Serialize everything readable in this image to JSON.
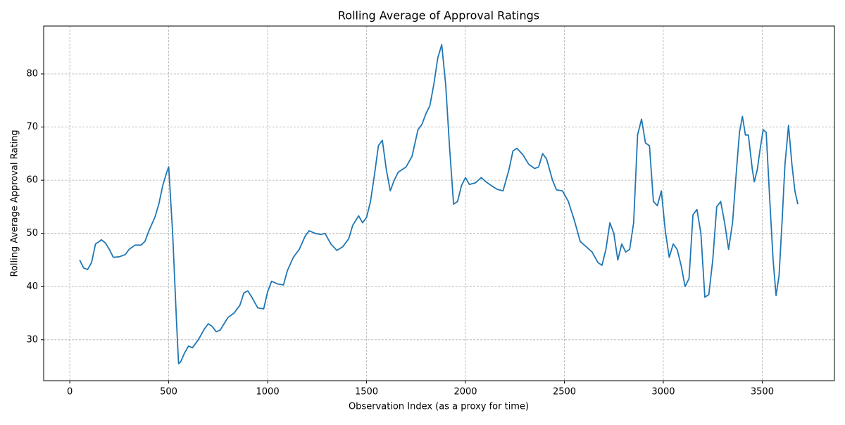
{
  "chart_data": {
    "type": "line",
    "title": "Rolling Average of Approval Ratings",
    "x_label": "Observation Index (as a proxy for time)",
    "y_label": "Rolling Average Approval Rating",
    "grid": true,
    "xlim": [
      -132,
      3865
    ],
    "ylim": [
      22.3,
      89.0
    ],
    "xticks": [
      0,
      500,
      1000,
      1500,
      2000,
      2500,
      3000,
      3500
    ],
    "yticks": [
      30,
      40,
      50,
      60,
      70,
      80
    ],
    "x": [
      50,
      70,
      90,
      110,
      130,
      150,
      160,
      180,
      200,
      220,
      250,
      280,
      300,
      330,
      360,
      380,
      400,
      430,
      450,
      470,
      490,
      500,
      520,
      540,
      550,
      560,
      580,
      600,
      620,
      650,
      680,
      700,
      720,
      740,
      760,
      780,
      800,
      830,
      860,
      880,
      900,
      920,
      950,
      980,
      1000,
      1020,
      1050,
      1080,
      1100,
      1130,
      1160,
      1190,
      1210,
      1240,
      1270,
      1290,
      1320,
      1350,
      1380,
      1410,
      1430,
      1460,
      1480,
      1500,
      1520,
      1540,
      1560,
      1580,
      1600,
      1620,
      1640,
      1660,
      1700,
      1730,
      1760,
      1780,
      1800,
      1820,
      1840,
      1860,
      1880,
      1900,
      1920,
      1940,
      1960,
      1980,
      2000,
      2020,
      2050,
      2080,
      2100,
      2130,
      2160,
      2190,
      2220,
      2240,
      2260,
      2290,
      2320,
      2350,
      2370,
      2390,
      2410,
      2440,
      2460,
      2490,
      2520,
      2550,
      2580,
      2610,
      2640,
      2670,
      2690,
      2710,
      2730,
      2750,
      2770,
      2790,
      2810,
      2830,
      2850,
      2870,
      2890,
      2910,
      2930,
      2950,
      2970,
      2990,
      3010,
      3030,
      3050,
      3070,
      3090,
      3110,
      3130,
      3150,
      3170,
      3190,
      3210,
      3230,
      3250,
      3270,
      3290,
      3310,
      3330,
      3350,
      3370,
      3385,
      3400,
      3415,
      3430,
      3450,
      3460,
      3475,
      3490,
      3505,
      3520,
      3540,
      3555,
      3570,
      3585,
      3600,
      3615,
      3633,
      3650,
      3665,
      3680
    ],
    "series": [
      {
        "name": "Rolling Average",
        "color": "#1f77b4",
        "values": [
          45,
          43.5,
          43.2,
          44.5,
          48,
          48.5,
          48.8,
          48.2,
          47,
          45.5,
          45.6,
          46,
          47,
          47.8,
          47.8,
          48.5,
          50.5,
          53,
          55.5,
          59,
          61.5,
          62.5,
          50,
          33,
          25.5,
          25.8,
          27.5,
          28.8,
          28.5,
          30,
          32,
          33,
          32.5,
          31.5,
          31.8,
          33,
          34.2,
          35,
          36.5,
          38.8,
          39.2,
          38,
          36,
          35.8,
          39,
          41,
          40.5,
          40.3,
          43,
          45.5,
          47,
          49.5,
          50.5,
          50,
          49.8,
          50,
          48,
          46.8,
          47.5,
          49,
          51.5,
          53.3,
          52,
          53,
          56,
          61,
          66.5,
          67.5,
          62,
          58,
          60,
          61.5,
          62.5,
          64.5,
          69.5,
          70.5,
          72.5,
          74,
          78,
          83,
          85.5,
          78,
          66,
          55.5,
          56,
          59,
          60.5,
          59.2,
          59.5,
          60.5,
          59.8,
          59,
          58.3,
          58,
          62,
          65.5,
          66,
          64.8,
          63,
          62.2,
          62.5,
          65,
          64,
          60,
          58.2,
          58,
          56,
          52.5,
          48.5,
          47.5,
          46.5,
          44.5,
          44,
          47,
          52,
          50,
          45,
          48,
          46.5,
          47,
          52,
          68.5,
          71.5,
          67,
          66.5,
          56,
          55.2,
          58,
          50.5,
          45.5,
          48,
          47,
          44,
          40,
          41.5,
          53.5,
          54.5,
          50,
          38,
          38.5,
          45,
          55,
          56,
          52,
          47,
          52,
          62,
          69,
          72,
          68.5,
          68.5,
          62,
          59.7,
          62,
          66,
          69.5,
          69,
          55,
          45,
          38.3,
          42,
          52,
          63,
          70.3,
          63,
          58,
          55.5
        ]
      }
    ]
  }
}
